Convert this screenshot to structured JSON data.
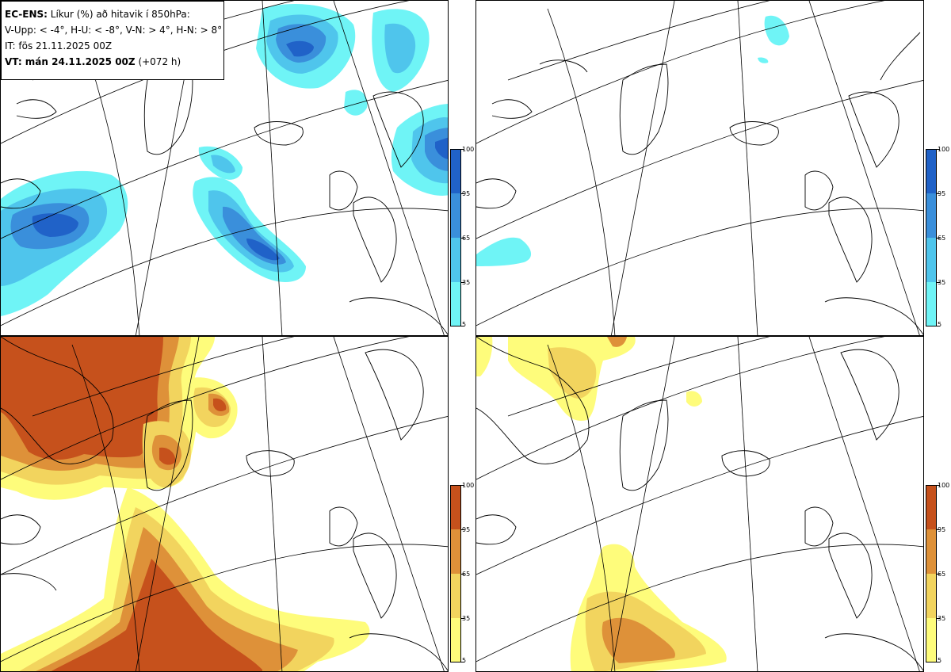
{
  "title": {
    "model_label": "EC-ENS:",
    "description": "Líkur (%) að hitavik í 850hPa:",
    "thresholds": "V-Upp: < -4°, H-U: < -8°, V-N: > 4°, H-N: > 8°",
    "initial_time": "IT: fös 21.11.2025 00Z",
    "valid_label": "VT: mán 24.11.2025 00Z",
    "lead_time": "(+072 h)"
  },
  "colorbar_levels": [
    "100",
    "95",
    "65",
    "35",
    "5"
  ],
  "colors": {
    "cold": [
      "#6ff4f6",
      "#4fc5ec",
      "#3a8fdb",
      "#2062c8"
    ],
    "warm": [
      "#fefc7b",
      "#f2d45e",
      "#de9139",
      "#c6511c"
    ],
    "coast": "#000000",
    "grid": "#000000"
  },
  "panels": [
    {
      "name": "V-Upp",
      "scheme": "cold"
    },
    {
      "name": "H-U",
      "scheme": "cold"
    },
    {
      "name": "V-N",
      "scheme": "warm"
    },
    {
      "name": "H-N",
      "scheme": "warm"
    }
  ]
}
